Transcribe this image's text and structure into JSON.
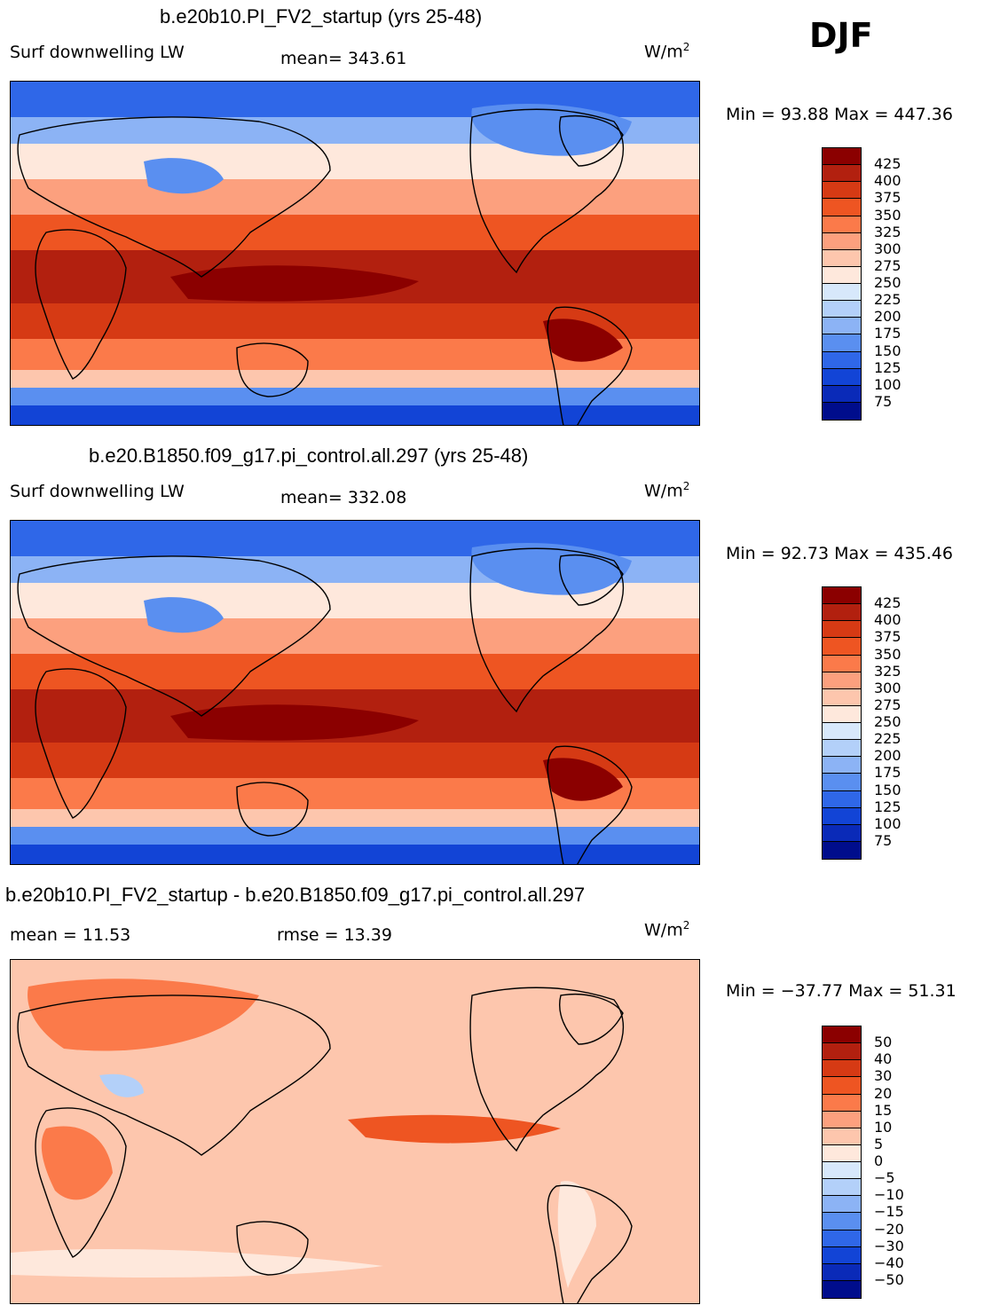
{
  "season": "DJF",
  "panels": [
    {
      "title": "b.e20b10.PI_FV2_startup (yrs 25-48)",
      "left_label": "Surf downwelling LW",
      "stat_text": "mean= 343.61",
      "units_base": "W/m",
      "units_exp": "2",
      "minmax": "Min =  93.88 Max = 447.36",
      "map_type": "absolute",
      "map_description": "Global map of surface downwelling longwave radiation",
      "colorbar": {
        "labels": [
          "425",
          "400",
          "375",
          "350",
          "325",
          "300",
          "275",
          "250",
          "225",
          "200",
          "175",
          "150",
          "125",
          "100",
          "75"
        ],
        "colors": [
          "#8b0000",
          "#b2200f",
          "#d63a14",
          "#ee5522",
          "#fb7a4a",
          "#fca07e",
          "#fdc6ad",
          "#fee8dc",
          "#d7e8fb",
          "#b3d0f9",
          "#8cb3f5",
          "#5a8ff0",
          "#2f67e8",
          "#1244d6",
          "#0a2ab8",
          "#000d8c"
        ]
      }
    },
    {
      "title": "b.e20.B1850.f09_g17.pi_control.all.297 (yrs 25-48)",
      "left_label": "Surf downwelling LW",
      "stat_text": "mean= 332.08",
      "units_base": "W/m",
      "units_exp": "2",
      "minmax": "Min =  92.73 Max = 435.46",
      "map_type": "absolute",
      "map_description": "Global map of surface downwelling longwave radiation, control run",
      "colorbar": {
        "labels": [
          "425",
          "400",
          "375",
          "350",
          "325",
          "300",
          "275",
          "250",
          "225",
          "200",
          "175",
          "150",
          "125",
          "100",
          "75"
        ],
        "colors": [
          "#8b0000",
          "#b2200f",
          "#d63a14",
          "#ee5522",
          "#fb7a4a",
          "#fca07e",
          "#fdc6ad",
          "#fee8dc",
          "#d7e8fb",
          "#b3d0f9",
          "#8cb3f5",
          "#5a8ff0",
          "#2f67e8",
          "#1244d6",
          "#0a2ab8",
          "#000d8c"
        ]
      }
    },
    {
      "title": "b.e20b10.PI_FV2_startup - b.e20.B1850.f09_g17.pi_control.all.297",
      "left_label": "mean =   11.53",
      "stat_text": "rmse =   13.39",
      "units_base": "W/m",
      "units_exp": "2",
      "minmax": "Min = −37.77 Max =  51.31",
      "map_type": "difference",
      "map_description": "Global map of the difference between the two runs",
      "colorbar": {
        "labels": [
          "50",
          "40",
          "30",
          "20",
          "15",
          "10",
          "5",
          "0",
          "−5",
          "−10",
          "−15",
          "−20",
          "−30",
          "−40",
          "−50"
        ],
        "colors": [
          "#8b0000",
          "#b2200f",
          "#d63a14",
          "#ee5522",
          "#fb7a4a",
          "#fca07e",
          "#fdc6ad",
          "#fee8dc",
          "#d7e8fb",
          "#b3d0f9",
          "#8cb3f5",
          "#5a8ff0",
          "#2f67e8",
          "#1244d6",
          "#0a2ab8",
          "#000d8c"
        ]
      }
    }
  ]
}
